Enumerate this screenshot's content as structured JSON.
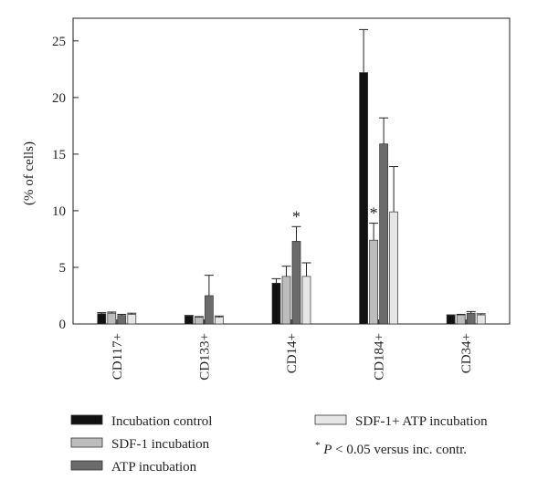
{
  "chart_data": {
    "type": "bar",
    "title": "",
    "xlabel": "",
    "ylabel": "(% of cells)",
    "ylim": [
      0,
      27
    ],
    "yticks": [
      0,
      5,
      10,
      15,
      20,
      25
    ],
    "grid": false,
    "legend_position": "bottom",
    "categories": [
      "CD117+",
      "CD133+",
      "CD14+",
      "CD184+",
      "CD34+"
    ],
    "series": [
      {
        "name": "Incubation control",
        "color": "#111111",
        "values": [
          0.9,
          0.7,
          3.6,
          22.2,
          0.75
        ],
        "errors": [
          0.1,
          0.05,
          0.4,
          3.8,
          0.05
        ]
      },
      {
        "name": "SDF-1 incubation",
        "color": "#bdbdbd",
        "values": [
          0.95,
          0.6,
          4.2,
          7.4,
          0.8
        ],
        "errors": [
          0.1,
          0.05,
          0.9,
          1.5,
          0.05
        ]
      },
      {
        "name": "ATP incubation",
        "color": "#6b6b6b",
        "values": [
          0.75,
          2.5,
          7.3,
          15.9,
          0.95
        ],
        "errors": [
          0.1,
          1.8,
          1.3,
          2.3,
          0.15
        ]
      },
      {
        "name": "SDF-1+ ATP incubation",
        "color": "#e6e6e6",
        "values": [
          0.85,
          0.6,
          4.2,
          9.9,
          0.8
        ],
        "errors": [
          0.1,
          0.1,
          1.2,
          4.0,
          0.1
        ]
      }
    ],
    "annotations": [
      {
        "text": "*",
        "category": "CD14+",
        "series": "ATP incubation"
      },
      {
        "text": "*",
        "category": "CD184+",
        "series": "SDF-1 incubation"
      }
    ],
    "footnote": {
      "star": "*",
      "p": "P",
      "rest": " < 0.05 versus inc. contr."
    }
  }
}
